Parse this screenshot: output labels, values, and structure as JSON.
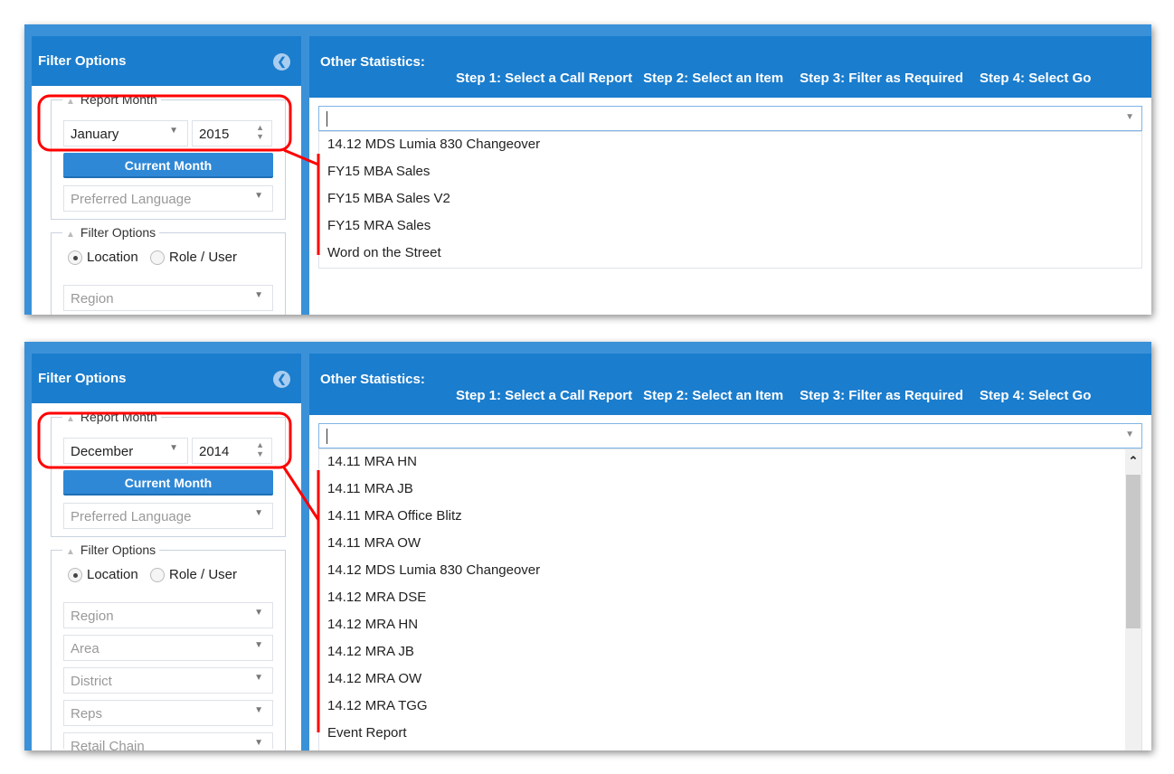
{
  "colors": {
    "header": "#1b7dcd",
    "outer": "#3b91d8",
    "annotation": "#ff0000",
    "button": "#2f88d6"
  },
  "panels": [
    {
      "sidebar": {
        "title": "Filter Options",
        "report_month_legend": "Report Month",
        "month": "January",
        "year": "2015",
        "current_month_button": "Current Month",
        "preferred_language_placeholder": "Preferred Language",
        "filter_options_legend": "Filter Options",
        "radio_location": "Location",
        "radio_role": "Role / User",
        "radio_selected": "Location",
        "selects": [
          "Region"
        ]
      },
      "main": {
        "title": "Other Statistics:",
        "steps": [
          "Step 1: Select a Call Report",
          "Step 2: Select an Item",
          "Step 3: Filter as Required",
          "Step 4: Select Go"
        ],
        "combo_value": "",
        "items": [
          "14.12 MDS Lumia 830 Changeover",
          "FY15 MBA Sales",
          "FY15 MBA Sales V2",
          "FY15 MRA Sales",
          "Word on the Street"
        ]
      }
    },
    {
      "sidebar": {
        "title": "Filter Options",
        "report_month_legend": "Report Month",
        "month": "December",
        "year": "2014",
        "current_month_button": "Current Month",
        "preferred_language_placeholder": "Preferred Language",
        "filter_options_legend": "Filter Options",
        "radio_location": "Location",
        "radio_role": "Role / User",
        "radio_selected": "Location",
        "selects": [
          "Region",
          "Area",
          "District",
          "Reps",
          "Retail Chain"
        ]
      },
      "main": {
        "title": "Other Statistics:",
        "steps": [
          "Step 1: Select a Call Report",
          "Step 2: Select an Item",
          "Step 3: Filter as Required",
          "Step 4: Select Go"
        ],
        "combo_value": "",
        "items": [
          "14.11 MRA HN",
          "14.11 MRA JB",
          "14.11 MRA Office Blitz",
          "14.11 MRA OW",
          "14.12 MDS Lumia 830 Changeover",
          "14.12 MRA DSE",
          "14.12 MRA HN",
          "14.12 MRA JB",
          "14.12 MRA OW",
          "14.12 MRA TGG",
          "Event Report"
        ]
      }
    }
  ]
}
